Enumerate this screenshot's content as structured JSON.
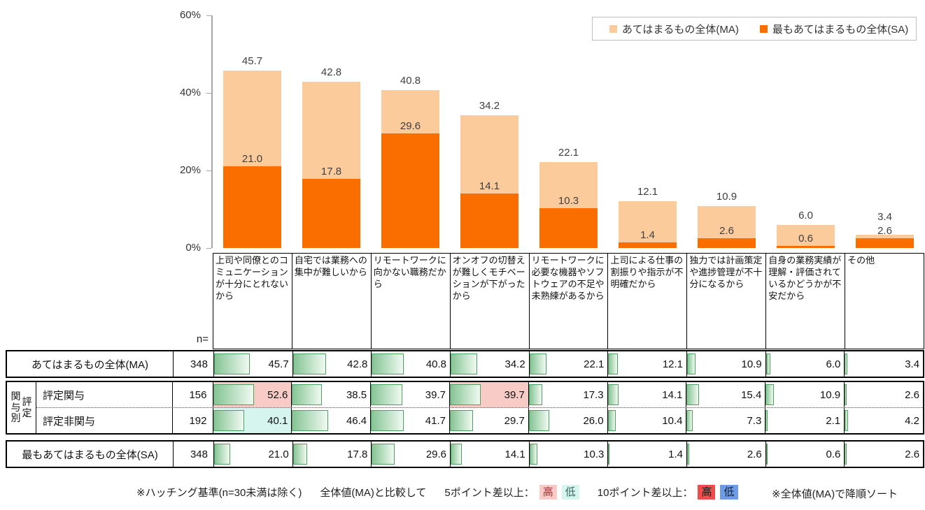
{
  "colors": {
    "ma_bar": "#FBCB9C",
    "sa_bar": "#FA6E00",
    "table_bar_start": "#85C494",
    "table_bar_end": "#F0FAF1",
    "table_bar_border": "#4DA05F",
    "high5_bg": "#F8CBC7",
    "low5_bg": "#D6F5EE",
    "high10_bg": "#EF4D4B",
    "low10_bg": "#6D9BE5",
    "axis": "#A6A6A6",
    "border": "#000000"
  },
  "legend": {
    "items": [
      {
        "label": "あてはまるもの全体(MA)",
        "color": "#FBCB9C"
      },
      {
        "label": "最もあてはまるもの全体(SA)",
        "color": "#FA6E00"
      }
    ]
  },
  "chart_data": {
    "type": "bar",
    "subtype": "overlapped",
    "categories": [
      "上司や同僚とのコミュニケーションが十分にとれないから",
      "自宅では業務への集中が難しいから",
      "リモートワークに向かない職務だから",
      "オンオフの切替えが難しくモチベーションが下がったから",
      "リモートワークに必要な機器やソフトウェアの不足や未熟練があるから",
      "上司による仕事の割振りや指示が不明確だから",
      "独力では計画策定や進捗管理が不十分になるから",
      "自身の業務実績が理解・評価されているかどうかが不安だから",
      "その他"
    ],
    "series": [
      {
        "name": "あてはまるもの全体(MA)",
        "values": [
          45.7,
          42.8,
          40.8,
          34.2,
          22.1,
          12.1,
          10.9,
          6.0,
          3.4
        ]
      },
      {
        "name": "最もあてはまるもの全体(SA)",
        "values": [
          21.0,
          17.8,
          29.6,
          14.1,
          10.3,
          1.4,
          2.6,
          0.6,
          2.6
        ]
      }
    ],
    "ylim": [
      0,
      60
    ],
    "yticks": [
      0,
      20,
      40,
      60
    ],
    "ytick_suffix": "%",
    "grid": false,
    "legend_position": "top-right"
  },
  "table": {
    "n_header": "n=",
    "sections": [
      {
        "kind": "single",
        "rows": [
          {
            "label": "あてはまるもの全体(MA)",
            "n": "348",
            "values": [
              45.7,
              42.8,
              40.8,
              34.2,
              22.1,
              12.1,
              10.9,
              6.0,
              3.4
            ],
            "highlights": {}
          }
        ]
      },
      {
        "kind": "group",
        "group_labels": [
          "関与別",
          "評定"
        ],
        "rows": [
          {
            "label": "評定関与",
            "n": "156",
            "values": [
              52.6,
              38.5,
              39.7,
              39.7,
              17.3,
              14.1,
              15.4,
              10.9,
              2.6
            ],
            "highlights": {
              "0": "high5",
              "3": "high5"
            }
          },
          {
            "label": "評定非関与",
            "n": "192",
            "values": [
              40.1,
              46.4,
              41.7,
              29.7,
              26.0,
              10.4,
              7.3,
              2.1,
              4.2
            ],
            "highlights": {
              "0": "low5"
            }
          }
        ]
      },
      {
        "kind": "single",
        "rows": [
          {
            "label": "最もあてはまるもの全体(SA)",
            "n": "348",
            "values": [
              21.0,
              17.8,
              29.6,
              14.1,
              10.3,
              1.4,
              2.6,
              0.6,
              2.6
            ],
            "highlights": {}
          }
        ]
      }
    ]
  },
  "footnote": {
    "note_hatching": "※ハッチング基準(n=30未満は除く)",
    "compare": "全体値(MA)と比較して",
    "rule5": "5ポイント差以上：",
    "rule10": "10ポイント差以上：",
    "high": "高",
    "low": "低",
    "note_sort": "※全体値(MA)で降順ソート"
  }
}
